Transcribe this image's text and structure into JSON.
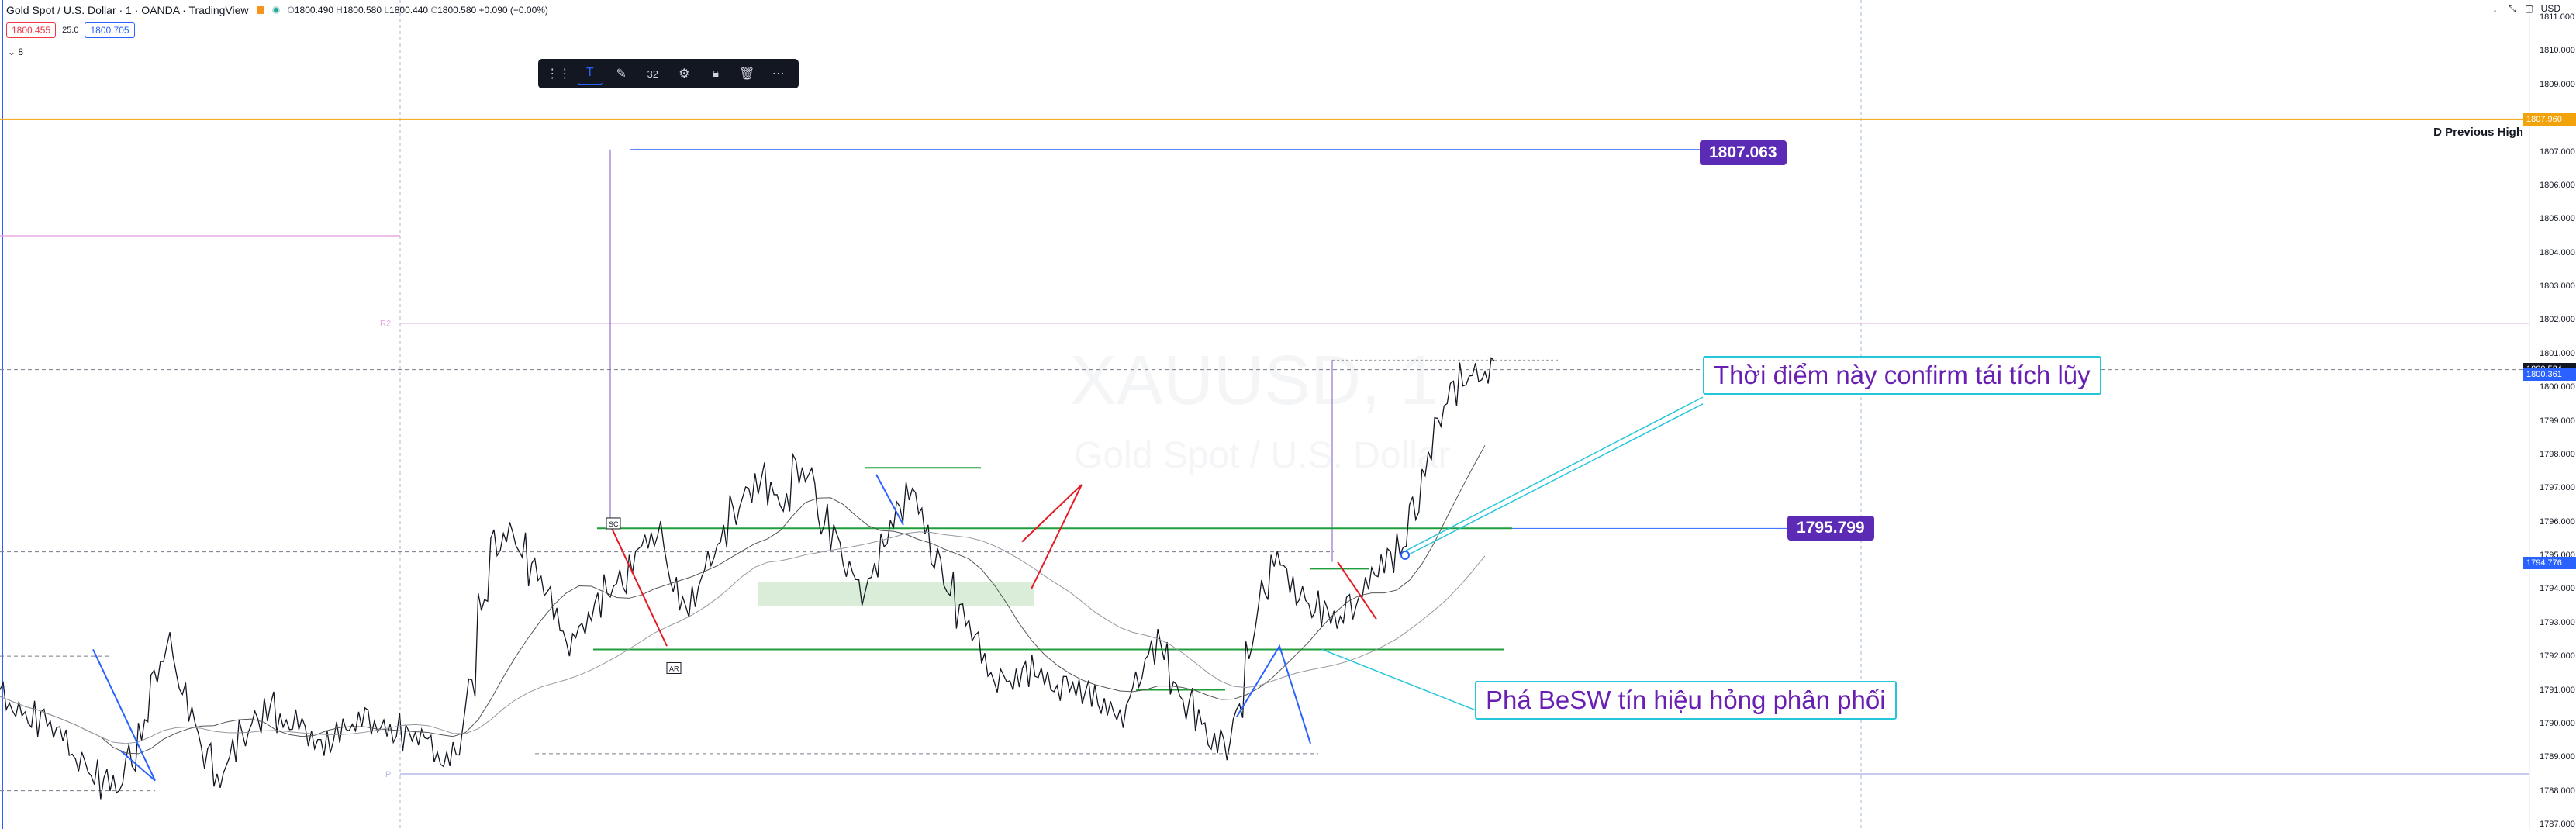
{
  "header": {
    "symbol_title": "Gold Spot / U.S. Dollar · 1 · OANDA · TradingView",
    "ohlc": {
      "o": "1800.490",
      "h": "1800.580",
      "l": "1800.440",
      "c": "1800.580",
      "chg": "+0.090 (+0.00%)"
    },
    "bid": "1800.455",
    "spread": "25.0",
    "ask": "1800.705",
    "indicators_count": "8",
    "currency": "USD"
  },
  "toolbar": {
    "items": [
      "layout-icon",
      "text-icon",
      "paint-icon",
      "32",
      "settings-icon",
      "lock-icon",
      "delete-icon",
      "more-icon"
    ],
    "font_size": "32"
  },
  "watermark": {
    "symbol": "XAUUSD, 1",
    "name": "Gold Spot / U.S. Dollar"
  },
  "annotations": {
    "callout_top": "Thời điểm này confirm tái tích lũy",
    "callout_bottom": "Phá BeSW tín hiệu hỏng phân phối",
    "level_high": "1807.063",
    "level_mid": "1795.799",
    "previous_high_label": "D Previous High",
    "sc_tag": "SC",
    "ar_tag": "AR",
    "r2_tag": "R2",
    "p_tag": "P"
  },
  "colors": {
    "up_down_candle": "#131722",
    "accent_blue": "#2962ff",
    "drawing_green": "#1e9e3a",
    "prev_high_line": "#f2a20b",
    "level_box": "#5b2bb5",
    "callout_border": "#26c6da",
    "callout_text": "#6a1fb3",
    "zigzag_blue": "#2962ff",
    "zigzag_red": "#e31b23"
  },
  "chart_data": {
    "type": "line",
    "title": "Gold Spot / U.S. Dollar · 1 · OANDA",
    "xlabel": "",
    "ylabel": "",
    "ylim": [
      1787,
      1811
    ],
    "y_ticks": [
      "1811.000",
      "1810.000",
      "1809.000",
      "1808.000",
      "1807.000",
      "1806.000",
      "1805.000",
      "1804.000",
      "1803.000",
      "1802.000",
      "1801.000",
      "1800.000",
      "1799.000",
      "1798.000",
      "1797.000",
      "1796.000",
      "1795.000",
      "1794.000",
      "1793.000",
      "1792.000",
      "1791.000",
      "1790.000",
      "1789.000",
      "1788.000",
      "1787.000"
    ],
    "price_tags": [
      {
        "value": "1807.960",
        "color": "#f2a20b"
      },
      {
        "value": "1800.524",
        "color": "#131722"
      },
      {
        "value": "1800.361",
        "color": "#2962ff"
      },
      {
        "value": "1794.776",
        "color": "#2962ff"
      }
    ],
    "grid": false,
    "series": [
      {
        "values": [
          1790.8,
          1790.5,
          1790.2,
          1790.1,
          1789.7,
          1789.4,
          1789.0,
          1788.5,
          1788.2,
          1788.0,
          1789.0,
          1790.0,
          1791.5,
          1792.2,
          1791.0,
          1790.2,
          1789.2,
          1788.3,
          1789.0,
          1789.6,
          1790.2,
          1790.6,
          1790.0,
          1789.9,
          1789.7,
          1789.5,
          1789.6,
          1789.8,
          1789.9,
          1790.1,
          1790.0,
          1789.8,
          1789.6,
          1789.5,
          1789.3,
          1789.0,
          1789.3,
          1791.0,
          1793.5,
          1795.4,
          1795.8,
          1795.2,
          1794.5,
          1793.9,
          1793.1,
          1792.5,
          1792.9,
          1793.4,
          1793.9,
          1794.3,
          1795.0,
          1795.4,
          1795.5,
          1794.2,
          1793.6,
          1794.0,
          1794.8,
          1795.4,
          1796.3,
          1797.0,
          1797.3,
          1796.8,
          1796.4,
          1797.6,
          1797.5,
          1796.0,
          1795.5,
          1794.5,
          1794.0,
          1794.6,
          1795.5,
          1796.2,
          1796.8,
          1796.1,
          1795.0,
          1794.0,
          1793.2,
          1792.6,
          1791.8,
          1791.4,
          1791.2,
          1791.4,
          1791.5,
          1791.3,
          1791.2,
          1791.0,
          1790.8,
          1790.6,
          1790.5,
          1790.4,
          1791.2,
          1792.0,
          1792.3,
          1791.2,
          1790.6,
          1790.0,
          1789.3,
          1789.4,
          1790.5,
          1792.3,
          1793.8,
          1794.8,
          1794.4,
          1793.9,
          1793.4,
          1793.2,
          1793.0,
          1793.6,
          1794.1,
          1794.5,
          1794.8,
          1795.2,
          1796.5,
          1797.8,
          1799.0,
          1799.8,
          1800.2,
          1800.5,
          1800.6
        ]
      }
    ]
  }
}
